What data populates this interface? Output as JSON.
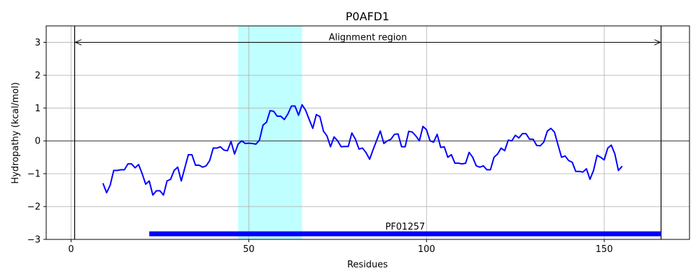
{
  "chart_data": {
    "type": "line",
    "title": "P0AFD1",
    "xlabel": "Residues",
    "ylabel": "Hydropathy (kcal/mol)",
    "xlim": [
      -7,
      174
    ],
    "ylim": [
      -3,
      3.5
    ],
    "x_ticks": [
      0,
      50,
      100,
      150
    ],
    "y_ticks": [
      -3,
      -2,
      -1,
      0,
      1,
      2,
      3
    ],
    "grid": true,
    "series": [
      {
        "color": "#0000ff",
        "x": [
          9,
          10,
          11,
          12,
          13,
          14,
          15,
          16,
          17,
          18,
          19,
          20,
          21,
          22,
          23,
          24,
          25,
          26,
          27,
          28,
          29,
          30,
          31,
          32,
          33,
          34,
          35,
          36,
          37,
          38,
          39,
          40,
          41,
          42,
          43,
          44,
          45,
          46,
          47,
          48,
          49,
          50,
          51,
          52,
          53,
          54,
          55,
          56,
          57,
          58,
          59,
          60,
          61,
          62,
          63,
          64,
          65,
          66,
          67,
          68,
          69,
          70,
          71,
          72,
          73,
          74,
          75,
          76,
          77,
          78,
          79,
          80,
          81,
          82,
          83,
          84,
          85,
          86,
          87,
          88,
          89,
          90,
          91,
          92,
          93,
          94,
          95,
          96,
          97,
          98,
          99,
          100,
          101,
          102,
          103,
          104,
          105,
          106,
          107,
          108,
          109,
          110,
          111,
          112,
          113,
          114,
          115,
          116,
          117,
          118,
          119,
          120,
          121,
          122,
          123,
          124,
          125,
          126,
          127,
          128,
          129,
          130,
          131,
          132,
          133,
          134,
          135,
          136,
          137,
          138,
          139,
          140,
          141,
          142,
          143,
          144,
          145,
          146,
          147,
          148,
          149,
          150,
          151,
          152,
          153,
          154,
          155
        ],
        "y": [
          -1.3,
          -1.58,
          -1.35,
          -0.9,
          -0.9,
          -0.88,
          -0.88,
          -0.7,
          -0.7,
          -0.82,
          -0.72,
          -1.0,
          -1.32,
          -1.22,
          -1.65,
          -1.52,
          -1.52,
          -1.65,
          -1.22,
          -1.17,
          -0.9,
          -0.8,
          -1.22,
          -0.82,
          -0.42,
          -0.42,
          -0.74,
          -0.74,
          -0.8,
          -0.76,
          -0.6,
          -0.22,
          -0.22,
          -0.18,
          -0.28,
          -0.3,
          -0.02,
          -0.4,
          -0.1,
          0.0,
          -0.08,
          -0.07,
          -0.08,
          -0.1,
          0.02,
          0.48,
          0.57,
          0.92,
          0.9,
          0.75,
          0.75,
          0.65,
          0.82,
          1.06,
          1.06,
          0.78,
          1.1,
          0.93,
          0.65,
          0.38,
          0.8,
          0.74,
          0.3,
          0.15,
          -0.18,
          0.12,
          0.0,
          -0.18,
          -0.17,
          -0.17,
          0.24,
          0.05,
          -0.25,
          -0.22,
          -0.36,
          -0.56,
          -0.26,
          0.02,
          0.3,
          -0.08,
          0.0,
          0.05,
          0.2,
          0.21,
          -0.18,
          -0.18,
          0.29,
          0.27,
          0.15,
          0.0,
          0.44,
          0.34,
          0.0,
          -0.04,
          0.2,
          -0.2,
          -0.18,
          -0.5,
          -0.42,
          -0.68,
          -0.68,
          -0.7,
          -0.68,
          -0.35,
          -0.5,
          -0.76,
          -0.8,
          -0.76,
          -0.88,
          -0.88,
          -0.5,
          -0.4,
          -0.22,
          -0.3,
          0.02,
          0.0,
          0.17,
          0.09,
          0.22,
          0.22,
          0.05,
          0.05,
          -0.14,
          -0.15,
          -0.04,
          0.3,
          0.38,
          0.27,
          -0.12,
          -0.5,
          -0.46,
          -0.6,
          -0.65,
          -0.93,
          -0.93,
          -0.95,
          -0.85,
          -1.17,
          -0.9,
          -0.44,
          -0.5,
          -0.58,
          -0.22,
          -0.13,
          -0.4,
          -0.9,
          -0.78
        ]
      }
    ],
    "highlight_region": {
      "x_start": 47,
      "x_end": 65,
      "color": "#c0ffff"
    },
    "vertical_lines": [
      1,
      166
    ],
    "alignment_arrow": {
      "x_start": 1,
      "x_end": 166,
      "y": 3.0,
      "label": "Alignment region"
    },
    "domain_bar": {
      "x_start": 22,
      "x_end": 166,
      "y": -2.83,
      "label": "PF01257",
      "color": "#0000ff"
    }
  }
}
